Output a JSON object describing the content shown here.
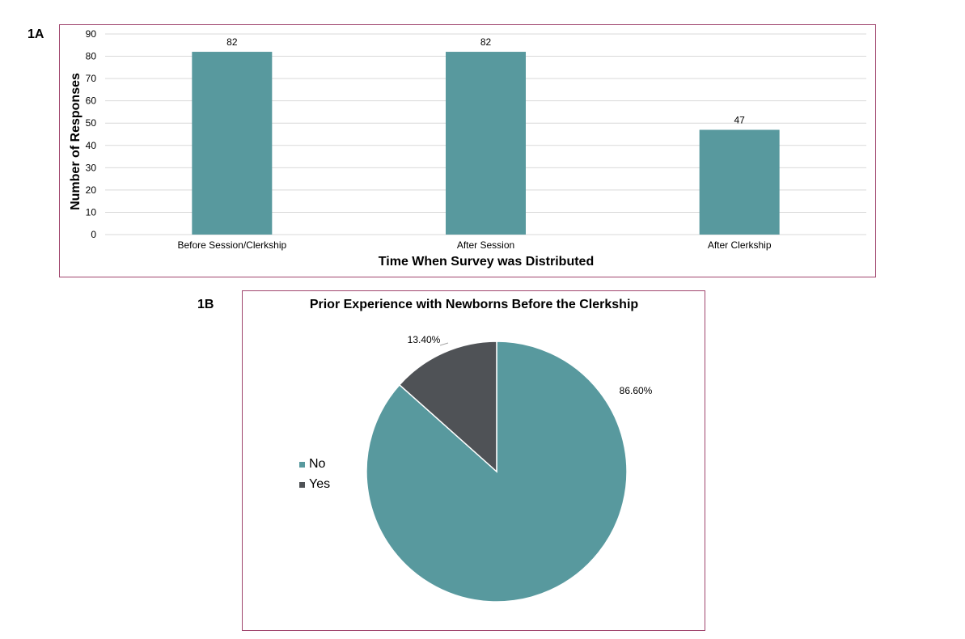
{
  "panels": {
    "a_label": "1A",
    "b_label": "1B"
  },
  "chart_data": [
    {
      "type": "bar",
      "title": "",
      "xlabel": "Time When Survey was Distributed",
      "ylabel": "Number of Responses",
      "categories": [
        "Before Session/Clerkship",
        "After Session",
        "After Clerkship"
      ],
      "values": [
        82,
        82,
        47
      ],
      "data_labels": [
        "82",
        "82",
        "47"
      ],
      "ylim": [
        0,
        90
      ],
      "yticks": [
        0,
        10,
        20,
        30,
        40,
        50,
        60,
        70,
        80,
        90
      ],
      "grid": true,
      "bar_color": "#58999e"
    },
    {
      "type": "pie",
      "title": "Prior Experience with Newborns Before the Clerkship",
      "slices": [
        {
          "label": "No",
          "value": 86.6,
          "data_label": "86.60%",
          "color": "#58999e"
        },
        {
          "label": "Yes",
          "value": 13.4,
          "data_label": "13.40%",
          "color": "#4f5256"
        }
      ],
      "legend_position": "left"
    }
  ]
}
